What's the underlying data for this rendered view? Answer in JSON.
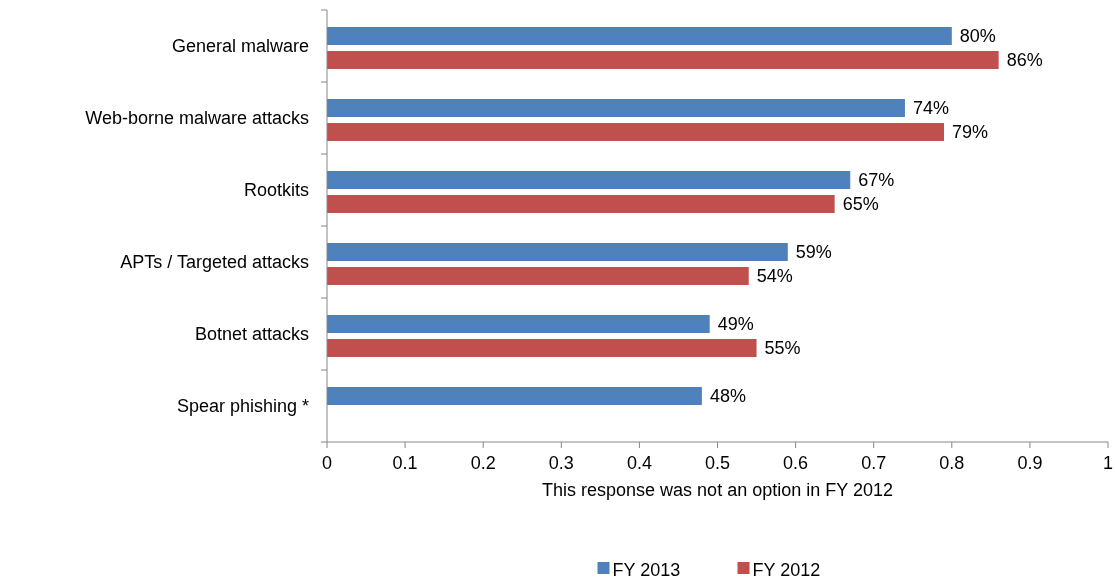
{
  "chart_data": {
    "type": "bar",
    "orientation": "horizontal",
    "categories": [
      "General malware",
      "Web-borne malware attacks",
      "Rootkits",
      "APTs / Targeted attacks",
      "Botnet attacks",
      "Spear phishing *"
    ],
    "series": [
      {
        "name": "FY 2013",
        "color": "#4f81bd",
        "values": [
          0.8,
          0.74,
          0.67,
          0.59,
          0.49,
          0.48
        ],
        "value_labels": [
          "80%",
          "74%",
          "67%",
          "59%",
          "49%",
          "48%"
        ]
      },
      {
        "name": "FY 2012",
        "color": "#c0504d",
        "values": [
          0.86,
          0.79,
          0.65,
          0.54,
          0.55,
          null
        ],
        "value_labels": [
          "86%",
          "79%",
          "65%",
          "54%",
          "55%",
          null
        ]
      }
    ],
    "xlim": [
      0,
      1
    ],
    "xticks": [
      0,
      0.1,
      0.2,
      0.3,
      0.4,
      0.5,
      0.6,
      0.7,
      0.8,
      0.9,
      1
    ],
    "xlabel": "This response was not an option in FY 2012",
    "legend": "bottom",
    "grid": false
  }
}
